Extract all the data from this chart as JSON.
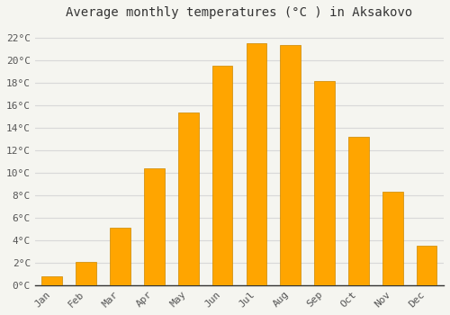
{
  "title": "Average monthly temperatures (°C ) in Aksakovo",
  "months": [
    "Jan",
    "Feb",
    "Mar",
    "Apr",
    "May",
    "Jun",
    "Jul",
    "Aug",
    "Sep",
    "Oct",
    "Nov",
    "Dec"
  ],
  "values": [
    0.8,
    2.1,
    5.1,
    10.4,
    15.3,
    19.5,
    21.5,
    21.3,
    18.1,
    13.2,
    8.3,
    3.5
  ],
  "bar_color": "#FFA500",
  "bar_edge_color": "#CC8800",
  "ylim": [
    0,
    23
  ],
  "yticks": [
    0,
    2,
    4,
    6,
    8,
    10,
    12,
    14,
    16,
    18,
    20,
    22
  ],
  "ytick_labels": [
    "0°C",
    "2°C",
    "4°C",
    "6°C",
    "8°C",
    "10°C",
    "12°C",
    "14°C",
    "16°C",
    "18°C",
    "20°C",
    "22°C"
  ],
  "background_color": "#f5f5f0",
  "grid_color": "#d8d8d8",
  "title_fontsize": 10,
  "tick_fontsize": 8,
  "font_family": "monospace",
  "bar_width": 0.6
}
